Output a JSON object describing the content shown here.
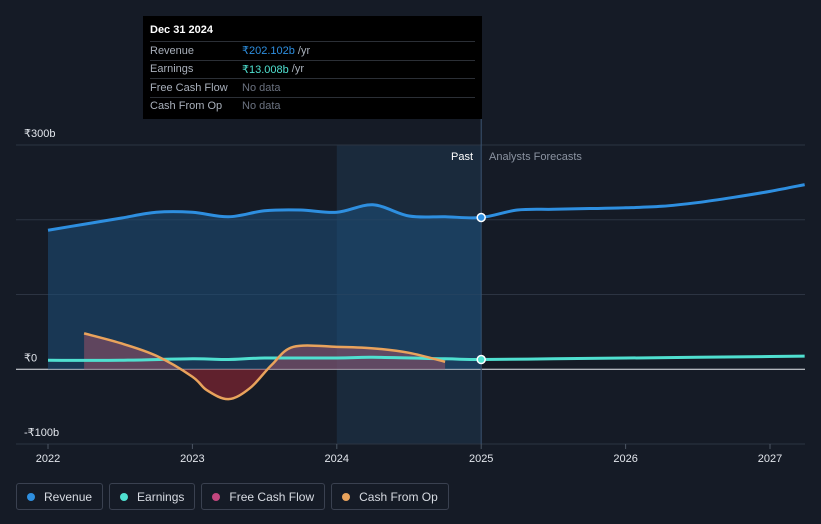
{
  "tooltip": {
    "date": "Dec 31 2024",
    "rows": [
      {
        "label": "Revenue",
        "value": "₹202.102b",
        "unit": "/yr",
        "color": "#2e8fe0"
      },
      {
        "label": "Earnings",
        "value": "₹13.008b",
        "unit": "/yr",
        "color": "#4fe0d0"
      },
      {
        "label": "Free Cash Flow",
        "value": "No data",
        "unit": ""
      },
      {
        "label": "Cash From Op",
        "value": "No data",
        "unit": ""
      }
    ]
  },
  "regions": {
    "past": "Past",
    "forecast": "Analysts Forecasts"
  },
  "legend": [
    {
      "label": "Revenue",
      "color": "#2e8fe0"
    },
    {
      "label": "Earnings",
      "color": "#4fe0d0"
    },
    {
      "label": "Free Cash Flow",
      "color": "#c2467e"
    },
    {
      "label": "Cash From Op",
      "color": "#e9a35c"
    }
  ],
  "chart_data": {
    "type": "line",
    "y_ticks": [
      {
        "value": 300,
        "label": "₹300b"
      },
      {
        "value": 0,
        "label": "₹0"
      },
      {
        "value": -100,
        "label": "-₹100b"
      }
    ],
    "x_ticks": [
      {
        "value": 2022,
        "label": "2022"
      },
      {
        "value": 2023,
        "label": "2023"
      },
      {
        "value": 2024,
        "label": "2024"
      },
      {
        "value": 2025,
        "label": "2025"
      },
      {
        "value": 2026,
        "label": "2026"
      },
      {
        "value": 2027,
        "label": "2027"
      }
    ],
    "xlim": [
      2021.77,
      2027.24
    ],
    "ylim": [
      -100,
      300
    ],
    "past_end": 2025.0,
    "highlight_start": 2024.0,
    "series": [
      {
        "name": "Revenue",
        "color": "#2e8fe0",
        "fill": true,
        "points": [
          [
            2022.0,
            186
          ],
          [
            2022.25,
            194
          ],
          [
            2022.5,
            202
          ],
          [
            2022.75,
            210
          ],
          [
            2023.0,
            210
          ],
          [
            2023.25,
            204
          ],
          [
            2023.5,
            212
          ],
          [
            2023.75,
            213
          ],
          [
            2024.0,
            210
          ],
          [
            2024.25,
            220
          ],
          [
            2024.5,
            205
          ],
          [
            2024.75,
            204
          ],
          [
            2025.0,
            203
          ],
          [
            2025.25,
            213
          ],
          [
            2025.5,
            214
          ],
          [
            2025.75,
            215
          ],
          [
            2026.0,
            216
          ],
          [
            2026.25,
            218
          ],
          [
            2026.5,
            223
          ],
          [
            2026.75,
            230
          ],
          [
            2027.0,
            238
          ],
          [
            2027.24,
            247
          ]
        ]
      },
      {
        "name": "Earnings",
        "color": "#4fe0d0",
        "fill": false,
        "points": [
          [
            2022.0,
            12
          ],
          [
            2022.5,
            12
          ],
          [
            2023.0,
            14
          ],
          [
            2023.25,
            13
          ],
          [
            2023.5,
            15
          ],
          [
            2024.0,
            15
          ],
          [
            2024.25,
            16
          ],
          [
            2024.75,
            14
          ],
          [
            2025.0,
            13
          ],
          [
            2025.5,
            14
          ],
          [
            2026.0,
            15
          ],
          [
            2026.5,
            16
          ],
          [
            2027.0,
            17
          ],
          [
            2027.24,
            17.5
          ]
        ]
      },
      {
        "name": "Cash From Op",
        "color": "#e9a35c",
        "fill": true,
        "points": [
          [
            2022.25,
            48
          ],
          [
            2022.5,
            35
          ],
          [
            2022.75,
            18
          ],
          [
            2023.0,
            -10
          ],
          [
            2023.1,
            -28
          ],
          [
            2023.25,
            -40
          ],
          [
            2023.4,
            -25
          ],
          [
            2023.55,
            6
          ],
          [
            2023.7,
            30
          ],
          [
            2024.0,
            30
          ],
          [
            2024.25,
            28
          ],
          [
            2024.5,
            22
          ],
          [
            2024.75,
            10
          ]
        ]
      }
    ]
  }
}
